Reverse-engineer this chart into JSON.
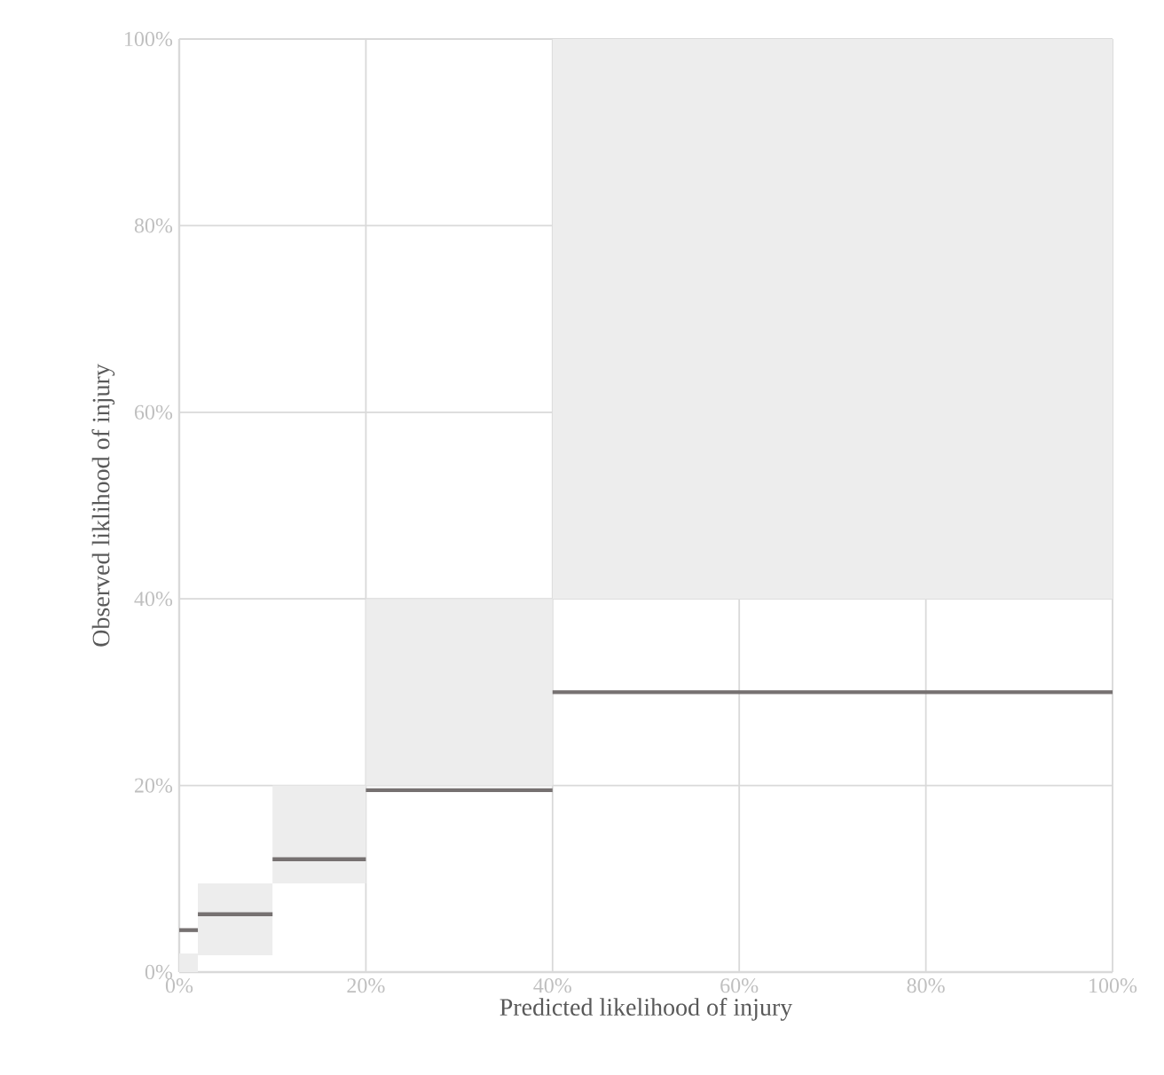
{
  "chart_data": {
    "type": "histogram",
    "xlabel": "Predicted likelihood of injury",
    "ylabel": "Observed liklihood of injury",
    "series": [
      {
        "bins": [
          0,
          2,
          10,
          20,
          40,
          100
        ],
        "base": [
          0,
          1.8,
          9.5,
          20,
          40
        ],
        "values": [
          2,
          7.7,
          10.5,
          20,
          60
        ],
        "color": "#ededed"
      },
      {
        "type": "line",
        "x": [
          0,
          2
        ],
        "values": [
          4.5,
          4.5
        ],
        "color": "#767171"
      },
      {
        "type": "line",
        "x": [
          2,
          10
        ],
        "values": [
          6.2,
          6.2
        ],
        "color": "#767171"
      },
      {
        "type": "line",
        "x": [
          10,
          20
        ],
        "values": [
          12.1,
          12.1
        ],
        "color": "#767171"
      },
      {
        "type": "line",
        "x": [
          20,
          40
        ],
        "values": [
          19.5,
          19.5
        ],
        "color": "#767171"
      },
      {
        "type": "line",
        "x": [
          40,
          100
        ],
        "values": [
          30,
          30
        ],
        "color": "#767171"
      }
    ],
    "xlim": [
      0,
      100
    ],
    "ylim": [
      0,
      100
    ],
    "xticks": [
      {
        "value": 0,
        "label": "0%"
      },
      {
        "value": 20,
        "label": "20%"
      },
      {
        "value": 40,
        "label": "40%"
      },
      {
        "value": 60,
        "label": "60%"
      },
      {
        "value": 80,
        "label": "80%"
      },
      {
        "value": 100,
        "label": "100%"
      }
    ],
    "yticks": [
      {
        "value": 0,
        "label": "0%"
      },
      {
        "value": 20,
        "label": "20%"
      },
      {
        "value": 40,
        "label": "40%"
      },
      {
        "value": 60,
        "label": "60%"
      },
      {
        "value": 80,
        "label": "80%"
      },
      {
        "value": 100,
        "label": "100%"
      }
    ],
    "grid": true
  }
}
